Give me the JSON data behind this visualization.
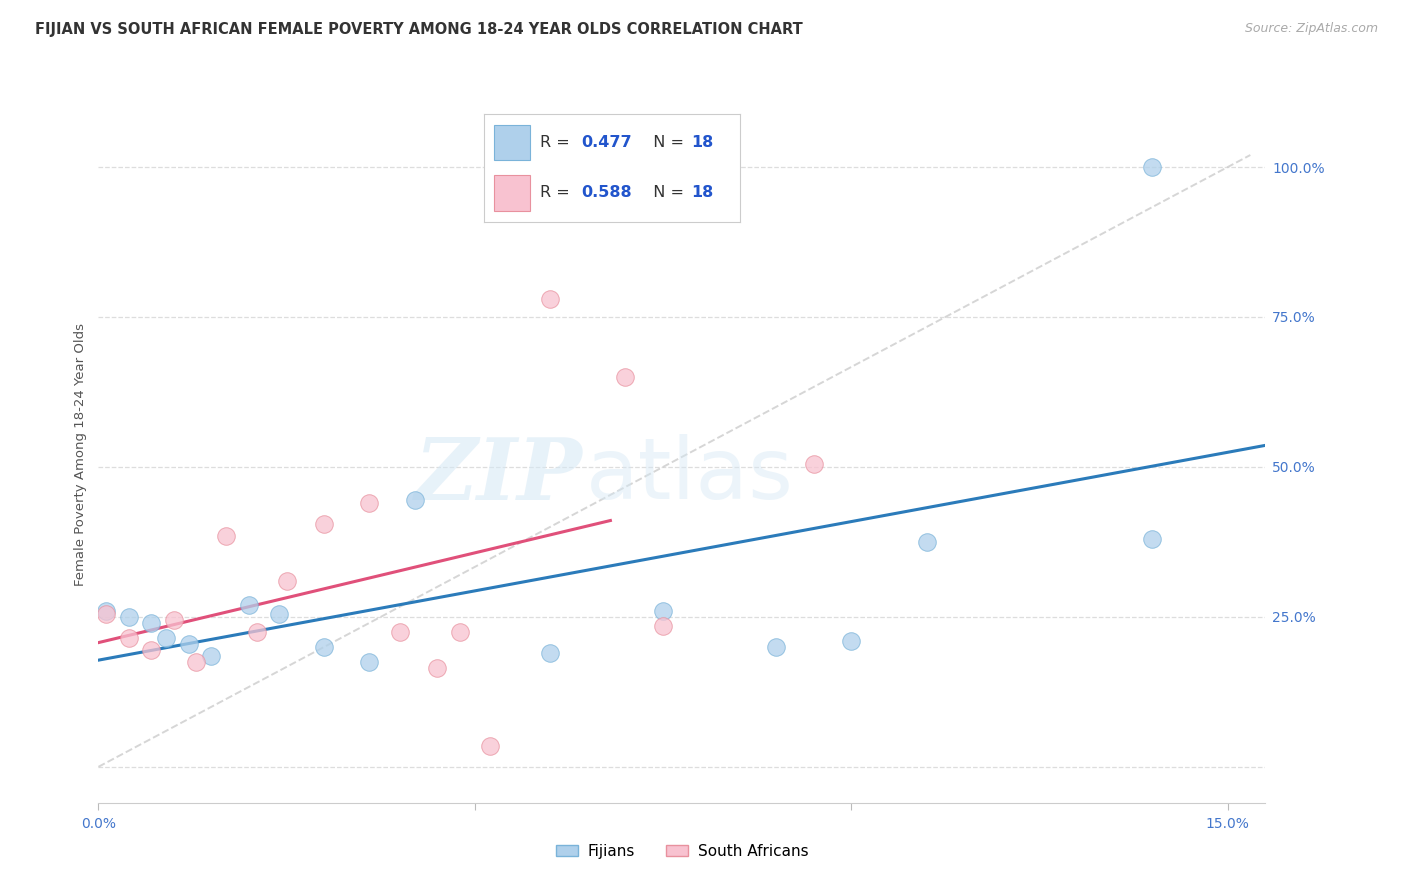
{
  "title": "FIJIAN VS SOUTH AFRICAN FEMALE POVERTY AMONG 18-24 YEAR OLDS CORRELATION CHART",
  "source": "Source: ZipAtlas.com",
  "ylabel": "Female Poverty Among 18-24 Year Olds",
  "xlim": [
    0.0,
    0.155
  ],
  "ylim": [
    -0.06,
    1.1
  ],
  "fijian_color": "#afd0eb",
  "fijian_edge": "#7ab3d9",
  "sa_color": "#f8c2d0",
  "sa_edge": "#e8919e",
  "fijian_R": 0.477,
  "fijian_N": 18,
  "sa_R": 0.588,
  "sa_N": 18,
  "fijian_x": [
    0.001,
    0.004,
    0.007,
    0.009,
    0.012,
    0.015,
    0.02,
    0.024,
    0.03,
    0.036,
    0.042,
    0.06,
    0.075,
    0.09,
    0.1,
    0.11,
    0.14,
    0.14
  ],
  "fijian_y": [
    0.26,
    0.25,
    0.24,
    0.215,
    0.205,
    0.185,
    0.27,
    0.255,
    0.2,
    0.175,
    0.445,
    0.19,
    0.26,
    0.2,
    0.21,
    0.375,
    0.38,
    1.0
  ],
  "sa_x": [
    0.001,
    0.004,
    0.007,
    0.01,
    0.013,
    0.017,
    0.021,
    0.025,
    0.03,
    0.036,
    0.04,
    0.045,
    0.048,
    0.052,
    0.06,
    0.07,
    0.075,
    0.095
  ],
  "sa_y": [
    0.255,
    0.215,
    0.195,
    0.245,
    0.175,
    0.385,
    0.225,
    0.31,
    0.405,
    0.44,
    0.225,
    0.165,
    0.225,
    0.035,
    0.78,
    0.65,
    0.235,
    0.505
  ],
  "fijian_line_color": "#2b7bba",
  "sa_line_color": "#e0507a",
  "diagonal_color": "#cccccc",
  "ytick_positions": [
    0.0,
    0.25,
    0.5,
    0.75,
    1.0
  ],
  "ytick_labels": [
    "",
    "25.0%",
    "50.0%",
    "75.0%",
    "100.0%"
  ],
  "xtick_positions": [
    0.0,
    0.05,
    0.1,
    0.15
  ],
  "xtick_labels": [
    "0.0%",
    "",
    "",
    "15.0%"
  ],
  "tick_color": "#4477cc",
  "label_color": "#555555",
  "grid_color": "#dddddd",
  "watermark_zip": "ZIP",
  "watermark_atlas": "atlas",
  "title_fontsize": 10.5,
  "axis_label_fontsize": 9.5,
  "tick_fontsize": 10,
  "source_fontsize": 9,
  "scatter_size": 160,
  "scatter_alpha": 0.75,
  "sa_line_xend": 0.068,
  "legend_text_color": "#333333",
  "legend_val_color": "#2255cc"
}
